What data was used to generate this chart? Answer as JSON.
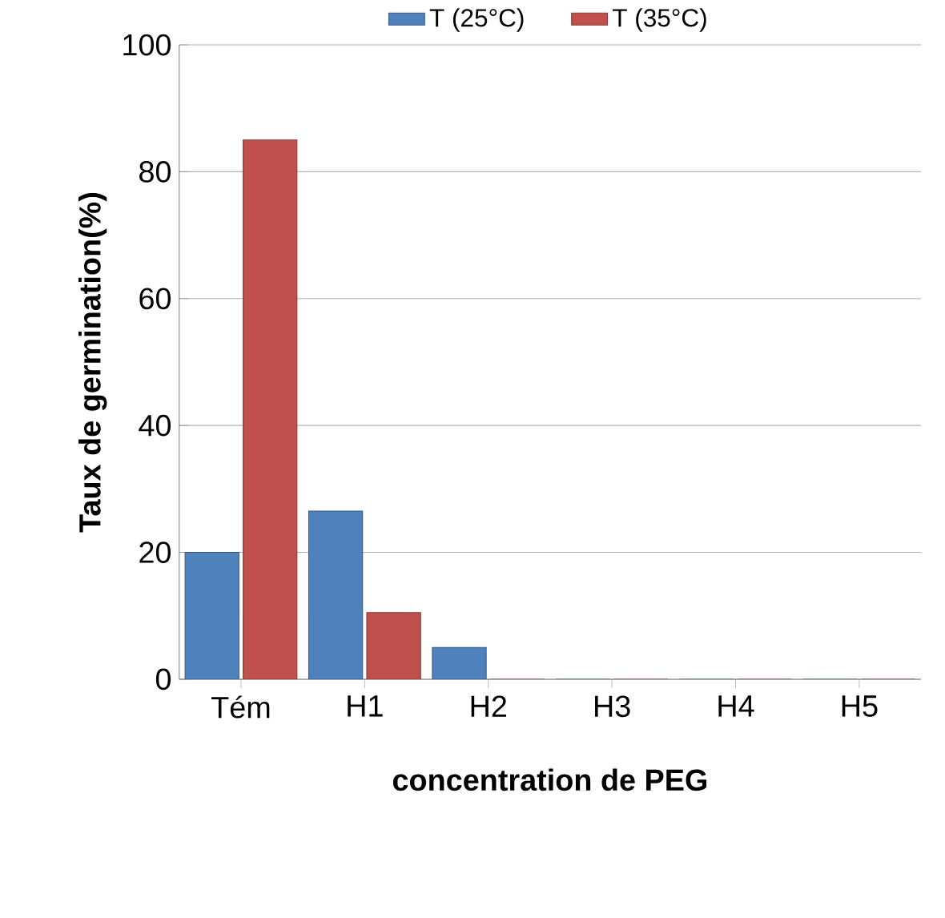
{
  "chart_data": {
    "type": "bar",
    "xlabel": "concentration de PEG",
    "ylabel": "Taux de germination(%)",
    "categories": [
      "Tém",
      "H1",
      "H2",
      "H3",
      "H4",
      "H5"
    ],
    "series": [
      {
        "name": "T (25°C)",
        "color": "#4f81bd",
        "values": [
          20,
          26.5,
          5,
          0,
          0,
          0
        ]
      },
      {
        "name": "T (35°C)",
        "color": "#c0504d",
        "values": [
          85,
          10.5,
          0,
          0,
          0,
          0
        ]
      }
    ],
    "ylim": [
      0,
      100
    ],
    "yticks": [
      0,
      20,
      40,
      60,
      80,
      100
    ],
    "grid": "y",
    "legend": "top"
  }
}
